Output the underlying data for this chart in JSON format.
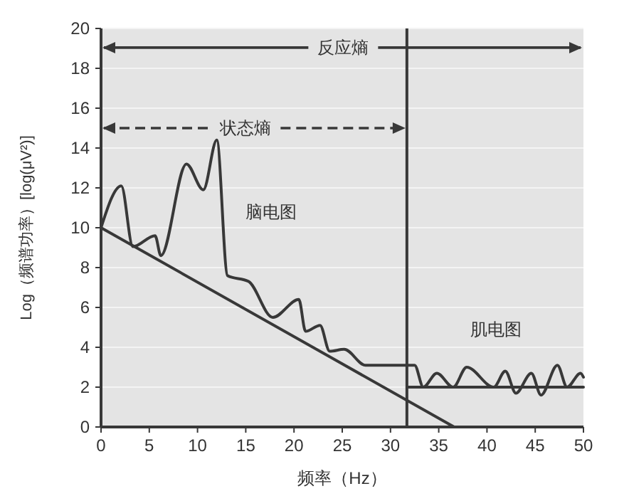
{
  "chart_data": {
    "type": "line",
    "xlabel": "频率（Hz）",
    "ylabel": "Log（频谱功率）[log(μV²)]",
    "xlim": [
      0,
      50
    ],
    "ylim": [
      0,
      20
    ],
    "xticks": [
      0,
      5,
      10,
      15,
      20,
      25,
      30,
      35,
      40,
      45,
      50
    ],
    "yticks": [
      0,
      2,
      4,
      6,
      8,
      10,
      12,
      14,
      16,
      18,
      20
    ],
    "grid": "y",
    "series": [
      {
        "color": "#383838",
        "x": [
          0,
          2.1,
          3.3,
          5.6,
          6.2,
          8.85,
          10.6,
          12.0,
          13.1,
          15.3,
          17.8,
          20.5,
          21.2,
          22.7,
          23.7,
          25.2,
          27.4,
          32.5,
          33.4,
          34.8,
          36.5,
          37.9,
          40.7,
          41.9,
          43.0,
          44.6,
          45.6,
          47.3,
          48.3,
          49.7,
          50
        ],
        "values": [
          10,
          12.1,
          9.05,
          9.6,
          8.6,
          13.2,
          11.9,
          14.4,
          7.6,
          7.3,
          5.5,
          6.4,
          4.8,
          5.1,
          3.8,
          3.9,
          3.1,
          3.1,
          2.0,
          2.7,
          2.0,
          3.0,
          2.0,
          2.8,
          1.7,
          2.7,
          1.6,
          3.1,
          2.0,
          2.7,
          2.5
        ]
      },
      {
        "color": "#383838",
        "x": [
          0,
          36.6
        ],
        "values": [
          10,
          0
        ]
      },
      {
        "color": "#383838",
        "x": [
          31.7,
          50
        ],
        "values": [
          2,
          2
        ]
      }
    ],
    "ref_lines": [
      {
        "axis": "x",
        "value": 31.7,
        "color": "#383838"
      }
    ],
    "annotations": [
      "反应熵",
      {
        "text": "状态熵",
        "x": 31.7,
        "y": 15
      },
      "脑电图",
      "肌电图"
    ]
  }
}
